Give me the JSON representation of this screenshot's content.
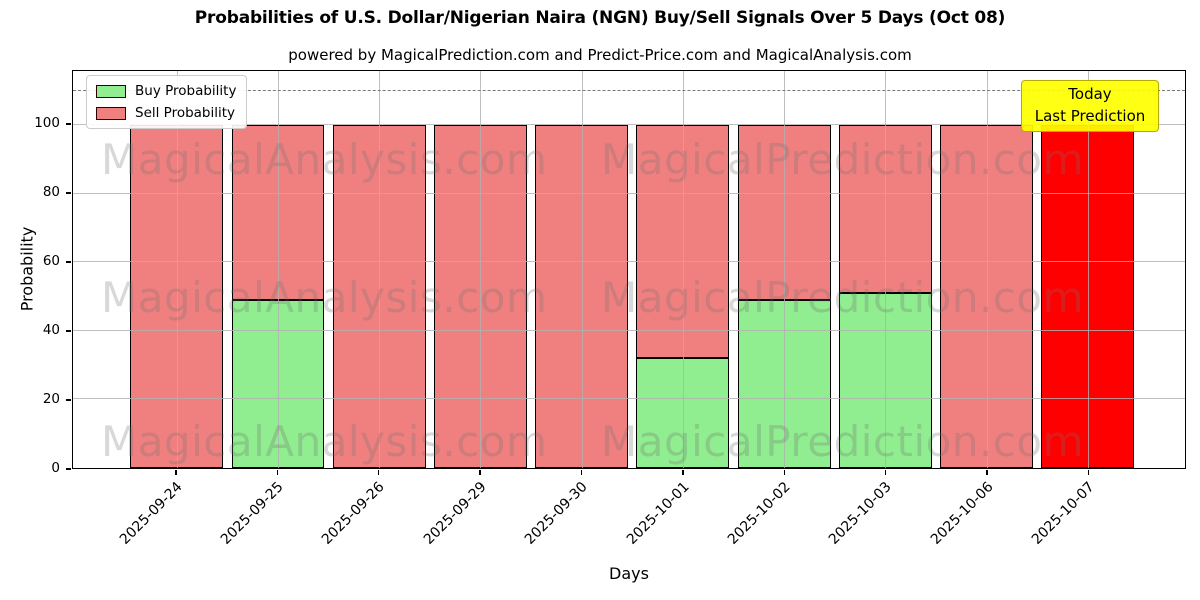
{
  "chart": {
    "title": "Probabilities of U.S. Dollar/Nigerian Naira (NGN) Buy/Sell Signals Over 5 Days (Oct 08)",
    "subtitle": "powered by MagicalPrediction.com and Predict-Price.com and MagicalAnalysis.com"
  },
  "axes": {
    "xlabel": "Days",
    "ylabel": "Probability",
    "yticks": [
      0,
      20,
      40,
      60,
      80,
      100
    ]
  },
  "legend": {
    "items": [
      {
        "label": "Buy Probability",
        "color": "#90ee90"
      },
      {
        "label": "Sell Probability",
        "color": "#f08080"
      }
    ]
  },
  "annotation": {
    "line1": "Today",
    "line2": "Last Prediction",
    "bg": "#ffff00",
    "border": "#b3ab00"
  },
  "watermarks": {
    "left_text": "MagicalAnalysis.com",
    "right_text": "MagicalPrediction.com",
    "rows": 3
  },
  "colors": {
    "buy": "#90ee90",
    "sell": "#f08080",
    "today_sell": "#ff0000",
    "grid": "#b0b0b0",
    "dashed": "#787878",
    "bar_edge": "#000000"
  },
  "chart_data": {
    "type": "bar",
    "stacked": true,
    "categories": [
      "2025-09-24",
      "2025-09-25",
      "2025-09-26",
      "2025-09-29",
      "2025-09-30",
      "2025-10-01",
      "2025-10-02",
      "2025-10-03",
      "2025-10-06",
      "2025-10-07"
    ],
    "series": [
      {
        "name": "Buy Probability",
        "color": "#90ee90",
        "values": [
          0,
          49,
          0,
          0,
          0,
          32,
          49,
          51,
          0,
          0
        ]
      },
      {
        "name": "Sell Probability",
        "color": "#f08080",
        "values": [
          100,
          51,
          100,
          100,
          100,
          68,
          51,
          49,
          100,
          100
        ]
      }
    ],
    "today_index": 9,
    "today_sell_color": "#ff0000",
    "title": "Probabilities of U.S. Dollar/Nigerian Naira (NGN) Buy/Sell Signals Over 5 Days (Oct 08)",
    "xlabel": "Days",
    "ylabel": "Probability",
    "ylim": [
      0,
      115.7
    ],
    "dashed_line_y": 110,
    "grid": true,
    "legend_position": "upper left"
  }
}
